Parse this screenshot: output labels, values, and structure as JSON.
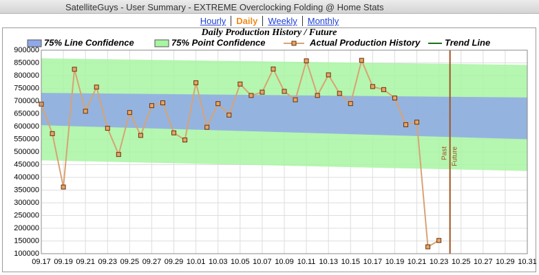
{
  "window_title": "SatelliteGuys - User Summary - EXTREME Overclocking Folding @ Home Stats",
  "nav": [
    "Hourly",
    "Daily",
    "Weekly",
    "Monthly"
  ],
  "nav_active": 1,
  "chart_data": {
    "type": "line",
    "title": "Daily Production History / Future",
    "categories": [
      "09.17",
      null,
      "09.19",
      null,
      "09.21",
      null,
      "09.23",
      null,
      "09.25",
      null,
      "09.27",
      null,
      "09.29",
      null,
      "10.01",
      null,
      "10.03",
      null,
      "10.05",
      null,
      "10.07",
      null,
      "10.09",
      null,
      "10.11",
      null,
      "10.13",
      null,
      "10.15",
      null,
      "10.17",
      null,
      "10.19",
      null,
      "10.21",
      null,
      "10.23",
      null,
      "10.25",
      null,
      "10.27",
      null,
      "10.29",
      null,
      "10.31"
    ],
    "ylim": [
      100000,
      900000
    ],
    "yticks": [
      100000,
      150000,
      200000,
      250000,
      300000,
      350000,
      400000,
      450000,
      500000,
      550000,
      600000,
      650000,
      700000,
      750000,
      800000,
      850000,
      900000
    ],
    "grid": true,
    "series": [
      {
        "name": "75% Line Confidence",
        "kind": "band",
        "color": "#8ea8e8",
        "upper": [
          732000,
          null,
          null,
          null,
          null,
          null,
          null,
          null,
          null,
          null,
          null,
          null,
          null,
          null,
          null,
          null,
          null,
          null,
          null,
          null,
          null,
          null,
          null,
          null,
          null,
          null,
          null,
          null,
          null,
          null,
          null,
          null,
          null,
          null,
          null,
          null,
          null,
          null,
          null,
          null,
          null,
          null,
          null,
          null,
          714000
        ],
        "lower": [
          605000,
          null,
          null,
          null,
          null,
          null,
          null,
          null,
          null,
          null,
          null,
          null,
          null,
          null,
          null,
          null,
          null,
          null,
          null,
          null,
          null,
          null,
          null,
          null,
          null,
          null,
          null,
          null,
          null,
          null,
          null,
          null,
          null,
          null,
          null,
          null,
          null,
          null,
          null,
          null,
          null,
          null,
          null,
          null,
          550000
        ]
      },
      {
        "name": "75% Point Confidence",
        "kind": "band",
        "color": "#a8f5a2",
        "upper": [
          868000,
          null,
          null,
          null,
          null,
          null,
          null,
          null,
          null,
          null,
          null,
          null,
          null,
          null,
          null,
          null,
          null,
          null,
          null,
          null,
          null,
          null,
          null,
          null,
          null,
          null,
          null,
          null,
          null,
          null,
          null,
          null,
          null,
          null,
          null,
          null,
          null,
          null,
          null,
          null,
          null,
          null,
          null,
          null,
          842000
        ],
        "lower": [
          467000,
          null,
          null,
          null,
          null,
          null,
          null,
          null,
          null,
          null,
          null,
          null,
          null,
          null,
          null,
          null,
          null,
          null,
          null,
          null,
          null,
          null,
          null,
          null,
          null,
          null,
          null,
          null,
          null,
          null,
          null,
          null,
          null,
          null,
          null,
          null,
          null,
          null,
          null,
          null,
          null,
          null,
          null,
          null,
          425000
        ]
      },
      {
        "name": "Actual Production History",
        "kind": "line",
        "color": "#d9a273",
        "marker_color": "#6b2e0a",
        "marker_fill": "#e2a666",
        "values": [
          688000,
          572000,
          362000,
          825000,
          660000,
          755000,
          593000,
          490000,
          655000,
          565000,
          682000,
          693000,
          575000,
          547000,
          772000,
          597000,
          690000,
          645000,
          767000,
          722000,
          735000,
          826000,
          738000,
          705000,
          858000,
          722000,
          803000,
          730000,
          690000,
          860000,
          757000,
          745000,
          712000,
          607000,
          617000,
          127000,
          152000,
          null,
          null,
          null,
          null,
          null,
          null,
          null,
          null
        ]
      },
      {
        "name": "Trend Line",
        "kind": "line",
        "color": "#1b6e1b",
        "values": [
          668000,
          null,
          null,
          null,
          null,
          null,
          null,
          null,
          null,
          null,
          null,
          null,
          null,
          null,
          null,
          null,
          null,
          null,
          null,
          null,
          null,
          null,
          null,
          null,
          null,
          null,
          null,
          null,
          null,
          null,
          null,
          null,
          null,
          null,
          null,
          null,
          null,
          null,
          null,
          null,
          null,
          null,
          null,
          null,
          633000
        ]
      }
    ],
    "divider": {
      "index": 37,
      "color": "#a0521e",
      "labels": [
        "Past",
        "Future"
      ]
    }
  }
}
